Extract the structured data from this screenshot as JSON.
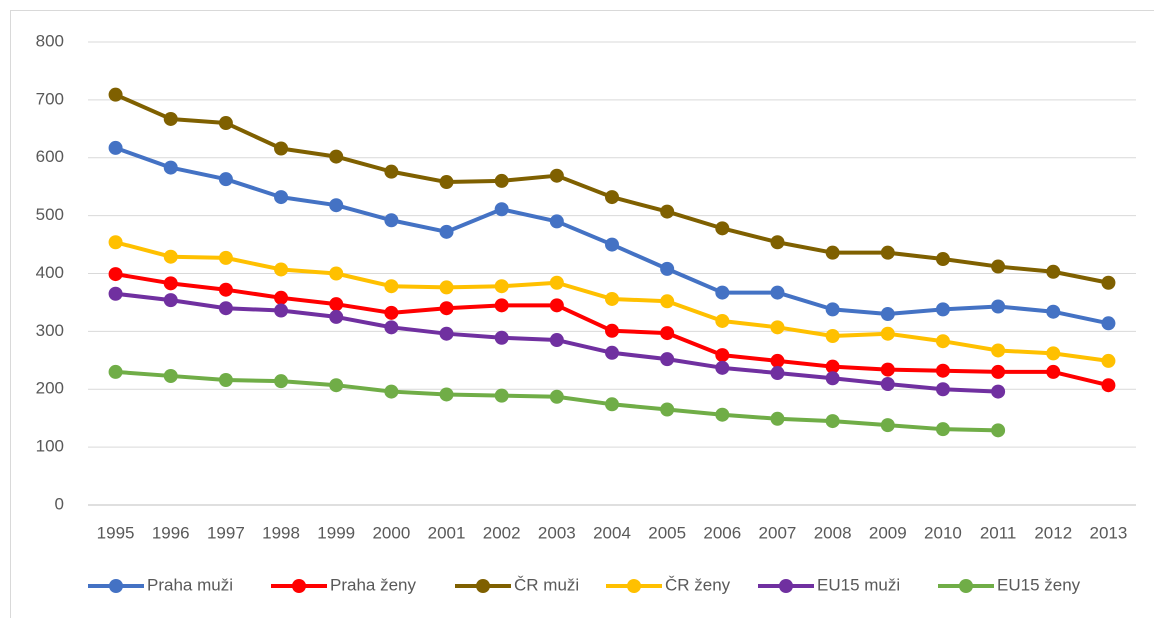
{
  "chart_data": {
    "type": "line",
    "categories": [
      "1995",
      "1996",
      "1997",
      "1998",
      "1999",
      "2000",
      "2001",
      "2002",
      "2003",
      "2004",
      "2005",
      "2006",
      "2007",
      "2008",
      "2009",
      "2010",
      "2011",
      "2012",
      "2013"
    ],
    "series": [
      {
        "name": "Praha muži",
        "color": "#4472c4",
        "values": [
          617,
          583,
          563,
          532,
          518,
          492,
          472,
          511,
          490,
          450,
          408,
          367,
          367,
          338,
          330,
          338,
          343,
          334,
          314
        ]
      },
      {
        "name": "Praha ženy",
        "color": "#ff0000",
        "values": [
          399,
          383,
          372,
          358,
          347,
          332,
          340,
          345,
          345,
          301,
          297,
          259,
          249,
          239,
          234,
          232,
          230,
          230,
          207
        ]
      },
      {
        "name": "ČR muži",
        "color": "#7f6000",
        "values": [
          709,
          667,
          660,
          616,
          602,
          576,
          558,
          560,
          569,
          532,
          507,
          478,
          454,
          436,
          436,
          425,
          412,
          403,
          384
        ]
      },
      {
        "name": "ČR ženy",
        "color": "#ffc000",
        "values": [
          454,
          429,
          427,
          407,
          400,
          378,
          376,
          378,
          384,
          356,
          352,
          318,
          307,
          292,
          296,
          283,
          267,
          262,
          249
        ]
      },
      {
        "name": "EU15 muži",
        "color": "#7030a0",
        "values": [
          365,
          354,
          340,
          336,
          325,
          307,
          296,
          289,
          285,
          263,
          252,
          237,
          228,
          219,
          209,
          200,
          196,
          null,
          null
        ]
      },
      {
        "name": "EU15 ženy",
        "color": "#70ad47",
        "values": [
          230,
          223,
          216,
          214,
          207,
          196,
          191,
          189,
          187,
          174,
          165,
          156,
          149,
          145,
          138,
          131,
          129,
          null,
          null
        ]
      }
    ],
    "ylim": [
      0,
      800
    ],
    "yticks": [
      0,
      100,
      200,
      300,
      400,
      500,
      600,
      700,
      800
    ],
    "grid": true,
    "legend": "bottom"
  }
}
